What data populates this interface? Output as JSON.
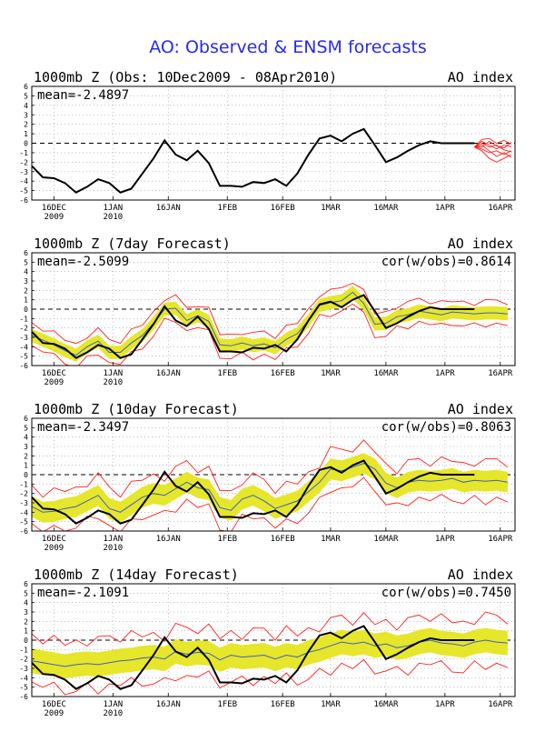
{
  "page": {
    "title": "AO: Observed & ENSM forecasts"
  },
  "x_ticks": [
    {
      "day": 6,
      "label": "16DEC",
      "sub": "2009"
    },
    {
      "day": 22,
      "label": "1JAN",
      "sub": "2010"
    },
    {
      "day": 37,
      "label": "16JAN",
      "sub": ""
    },
    {
      "day": 53,
      "label": "1FEB",
      "sub": ""
    },
    {
      "day": 68,
      "label": "16FEB",
      "sub": ""
    },
    {
      "day": 81,
      "label": "1MAR",
      "sub": ""
    },
    {
      "day": 96,
      "label": "16MAR",
      "sub": ""
    },
    {
      "day": 112,
      "label": "1APR",
      "sub": ""
    },
    {
      "day": 127,
      "label": "16APR",
      "sub": ""
    }
  ],
  "y_ticks": [
    -6,
    -5,
    -4,
    -3,
    -2,
    -1,
    0,
    1,
    2,
    3,
    4,
    5,
    6
  ],
  "colors": {
    "observed": "#000000",
    "forecast_members": "#ff2020",
    "ensemble_mean": "#4060c0",
    "spread_band": "#e6e62a",
    "title": "#2a2aee",
    "frame": "#000000",
    "grid": "#999999"
  },
  "chart_data": [
    {
      "type": "line",
      "title": "1000mb Z (Obs: 10Dec2009 - 08Apr2010)",
      "right_label": "AO index",
      "mean_label": "mean=-2.4897",
      "cor_label": "",
      "ylim": [
        -6,
        6
      ],
      "xlim_days": [
        0,
        131
      ],
      "observed": {
        "x_day": [
          0,
          3,
          6,
          9,
          12,
          15,
          18,
          21,
          24,
          27,
          30,
          33,
          36,
          39,
          42,
          45,
          48,
          51,
          54,
          57,
          60,
          63,
          66,
          69,
          72,
          75,
          78,
          81,
          84,
          87,
          90,
          93,
          96,
          99,
          102,
          105,
          108,
          111,
          114,
          117,
          120
        ],
        "y": [
          -2.4,
          -3.6,
          -3.7,
          -4.2,
          -5.2,
          -4.6,
          -3.8,
          -4.2,
          -5.2,
          -4.8,
          -3.2,
          -1.6,
          0.3,
          -1.2,
          -1.8,
          -0.8,
          -2.1,
          -4.5,
          -4.5,
          -4.6,
          -4.1,
          -4.2,
          -3.8,
          -4.5,
          -3.2,
          -1.2,
          0.5,
          0.8,
          0.2,
          1.0,
          1.5,
          -0.2,
          -2.0,
          -1.5,
          -0.8,
          -0.2,
          0.2,
          0,
          0,
          0,
          0
        ]
      },
      "red_members": {
        "x_day": [
          120,
          122,
          124,
          126,
          128,
          130
        ],
        "series": [
          [
            -0.4,
            0.2,
            -0.2,
            -0.6,
            -0.2,
            -0.4
          ],
          [
            -0.4,
            -0.6,
            -1.0,
            -0.8,
            -1.2,
            -0.8
          ],
          [
            -0.4,
            -0.2,
            -0.8,
            -1.4,
            -1.0,
            -1.5
          ],
          [
            -0.4,
            0.4,
            0.5,
            0.0,
            0.3,
            -0.1
          ],
          [
            -0.4,
            -0.8,
            -1.6,
            -2.0,
            -1.6,
            -1.2
          ],
          [
            -0.4,
            0.0,
            -0.4,
            -0.2,
            -0.7,
            -0.9
          ],
          [
            -0.4,
            -0.4,
            0.2,
            -0.3,
            -0.5,
            0.1
          ]
        ]
      }
    },
    {
      "type": "line",
      "title": "1000mb Z (7day Forecast)",
      "right_label": "AO index",
      "mean_label": "mean=-2.5099",
      "cor_label": "cor(w/obs)=0.8614",
      "ylim": [
        -6,
        6
      ],
      "xlim_days": [
        0,
        131
      ],
      "observed": {
        "x_day": [
          0,
          3,
          6,
          9,
          12,
          15,
          18,
          21,
          24,
          27,
          30,
          33,
          36,
          39,
          42,
          45,
          48,
          51,
          54,
          57,
          60,
          63,
          66,
          69,
          72,
          75,
          78,
          81,
          84,
          87,
          90,
          93,
          96,
          99,
          102,
          105,
          108,
          111,
          114,
          117,
          120
        ],
        "y": [
          -2.4,
          -3.6,
          -3.7,
          -4.2,
          -5.2,
          -4.6,
          -3.8,
          -4.2,
          -5.2,
          -4.8,
          -3.2,
          -1.6,
          0.3,
          -1.2,
          -1.8,
          -0.8,
          -2.1,
          -4.5,
          -4.5,
          -4.6,
          -4.1,
          -4.2,
          -3.8,
          -4.5,
          -3.2,
          -1.2,
          0.5,
          0.8,
          0.2,
          1.0,
          1.5,
          -0.2,
          -2.0,
          -1.5,
          -0.8,
          -0.2,
          0.2,
          0,
          0,
          0,
          0
        ]
      },
      "ens_mean": {
        "x_day": [
          0,
          3,
          6,
          9,
          12,
          15,
          18,
          21,
          24,
          27,
          30,
          33,
          36,
          39,
          42,
          45,
          48,
          51,
          54,
          57,
          60,
          63,
          66,
          69,
          72,
          75,
          78,
          81,
          84,
          87,
          90,
          93,
          96,
          99,
          102,
          105,
          108,
          111,
          114,
          117,
          120,
          123,
          126,
          129
        ],
        "y": [
          -2.8,
          -3.3,
          -3.8,
          -4.4,
          -4.9,
          -4.0,
          -3.4,
          -4.6,
          -4.6,
          -3.6,
          -2.8,
          -1.5,
          0.0,
          0.1,
          -1.2,
          -0.7,
          -1.3,
          -3.8,
          -3.9,
          -3.6,
          -3.9,
          -3.7,
          -4.1,
          -3.2,
          -2.6,
          -1.2,
          0.4,
          0.7,
          0.9,
          1.8,
          0.6,
          -1.6,
          -1.5,
          -0.8,
          -0.6,
          -0.2,
          -0.4,
          -0.6,
          -0.3,
          -0.4,
          -0.5,
          -0.4,
          -0.4,
          -0.5
        ]
      },
      "band_half_width": 0.7,
      "envelope_half_width": 1.2
    },
    {
      "type": "line",
      "title": "1000mb Z (10day Forecast)",
      "right_label": "AO index",
      "mean_label": "mean=-2.3497",
      "cor_label": "cor(w/obs)=0.8063",
      "ylim": [
        -6,
        6
      ],
      "xlim_days": [
        0,
        131
      ],
      "observed": {
        "x_day": [
          0,
          3,
          6,
          9,
          12,
          15,
          18,
          21,
          24,
          27,
          30,
          33,
          36,
          39,
          42,
          45,
          48,
          51,
          54,
          57,
          60,
          63,
          66,
          69,
          72,
          75,
          78,
          81,
          84,
          87,
          90,
          93,
          96,
          99,
          102,
          105,
          108,
          111,
          114,
          117,
          120
        ],
        "y": [
          -2.4,
          -3.6,
          -3.7,
          -4.2,
          -5.2,
          -4.6,
          -3.8,
          -4.2,
          -5.2,
          -4.8,
          -3.2,
          -1.6,
          0.3,
          -1.2,
          -1.8,
          -0.8,
          -2.1,
          -4.5,
          -4.5,
          -4.6,
          -4.1,
          -4.2,
          -3.8,
          -4.5,
          -3.2,
          -1.2,
          0.5,
          0.8,
          0.2,
          1.0,
          1.5,
          -0.2,
          -2.0,
          -1.5,
          -0.8,
          -0.2,
          0.2,
          0,
          0,
          0,
          0
        ]
      },
      "ens_mean": {
        "x_day": [
          0,
          3,
          6,
          9,
          12,
          15,
          18,
          21,
          24,
          27,
          30,
          33,
          36,
          39,
          42,
          45,
          48,
          51,
          54,
          57,
          60,
          63,
          66,
          69,
          72,
          75,
          78,
          81,
          84,
          87,
          90,
          93,
          96,
          99,
          102,
          105,
          108,
          111,
          114,
          117,
          120,
          123,
          126,
          129
        ],
        "y": [
          -3.4,
          -4.0,
          -3.9,
          -3.6,
          -3.4,
          -2.8,
          -2.2,
          -3.6,
          -4.0,
          -3.2,
          -2.4,
          -2.0,
          -2.2,
          -1.5,
          -0.8,
          -1.4,
          -1.6,
          -3.5,
          -3.8,
          -2.6,
          -2.2,
          -2.8,
          -3.6,
          -3.2,
          -2.8,
          -1.8,
          -0.8,
          0.6,
          0.4,
          0.8,
          1.2,
          0.6,
          -0.9,
          -1.4,
          -0.8,
          -0.6,
          -0.7,
          -0.6,
          -0.4,
          -0.8,
          -0.6,
          -0.7,
          -0.6,
          -0.8
        ]
      },
      "band_half_width": 1.1,
      "envelope_half_width": 2.0
    },
    {
      "type": "line",
      "title": "1000mb Z (14day Forecast)",
      "right_label": "AO index",
      "mean_label": "mean=-2.1091",
      "cor_label": "cor(w/obs)=0.7450",
      "ylim": [
        -6,
        6
      ],
      "xlim_days": [
        0,
        131
      ],
      "observed": {
        "x_day": [
          0,
          3,
          6,
          9,
          12,
          15,
          18,
          21,
          24,
          27,
          30,
          33,
          36,
          39,
          42,
          45,
          48,
          51,
          54,
          57,
          60,
          63,
          66,
          69,
          72,
          75,
          78,
          81,
          84,
          87,
          90,
          93,
          96,
          99,
          102,
          105,
          108,
          111,
          114,
          117,
          120
        ],
        "y": [
          -2.4,
          -3.6,
          -3.7,
          -4.2,
          -5.2,
          -4.6,
          -3.8,
          -4.2,
          -5.2,
          -4.8,
          -3.2,
          -1.6,
          0.3,
          -1.2,
          -1.8,
          -0.8,
          -2.1,
          -4.5,
          -4.5,
          -4.6,
          -4.1,
          -4.2,
          -3.8,
          -4.5,
          -3.2,
          -1.2,
          0.5,
          0.8,
          0.2,
          1.0,
          1.5,
          -0.2,
          -2.0,
          -1.5,
          -0.8,
          -0.2,
          0.2,
          0,
          0,
          0,
          0
        ]
      },
      "ens_mean": {
        "x_day": [
          0,
          3,
          6,
          9,
          12,
          15,
          18,
          21,
          24,
          27,
          30,
          33,
          36,
          39,
          42,
          45,
          48,
          51,
          54,
          57,
          60,
          63,
          66,
          69,
          72,
          75,
          78,
          81,
          84,
          87,
          90,
          93,
          96,
          99,
          102,
          105,
          108,
          111,
          114,
          117,
          120,
          123,
          126,
          129
        ],
        "y": [
          -2.2,
          -2.4,
          -2.6,
          -2.8,
          -2.6,
          -2.5,
          -2.6,
          -2.4,
          -2.2,
          -2.1,
          -1.9,
          -1.8,
          -2.0,
          -1.2,
          -1.5,
          -1.3,
          -1.4,
          -2.1,
          -1.6,
          -1.8,
          -1.7,
          -1.6,
          -2.0,
          -1.6,
          -1.8,
          -1.3,
          -1.0,
          -0.6,
          -0.2,
          -0.4,
          -0.2,
          -0.6,
          -0.4,
          -0.8,
          -0.6,
          -0.2,
          0.0,
          -0.3,
          -0.4,
          -0.6,
          -0.2,
          0.0,
          -0.2,
          -0.3
        ]
      },
      "band_half_width": 1.3,
      "envelope_half_width": 2.5
    }
  ]
}
